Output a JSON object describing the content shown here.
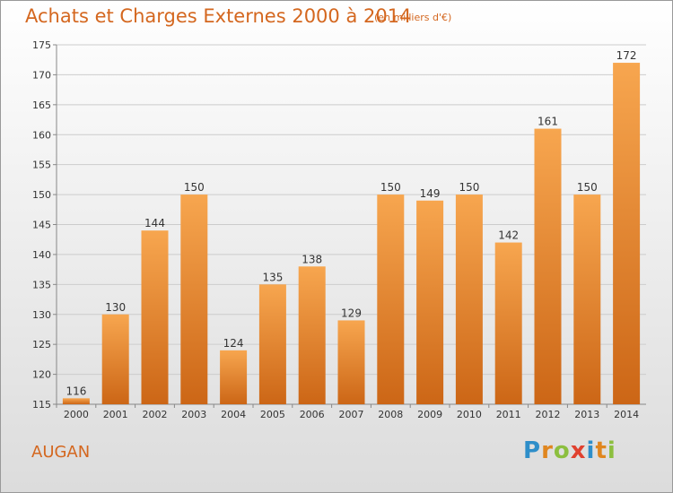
{
  "header": {
    "title": "Achats et Charges Externes 2000 à 2014",
    "subtitle": "(en milliers d'€)"
  },
  "footer": {
    "commune": "AUGAN",
    "logo_text": "Proxiti",
    "logo_letters": [
      "P",
      "r",
      "o",
      "x",
      "i",
      "t",
      "i"
    ]
  },
  "colors": {
    "bar_top": "#f7a64f",
    "bar_bottom": "#cc6616",
    "title": "#d4671f",
    "grid": "#cccccc"
  },
  "chart_data": {
    "type": "bar",
    "title": "Achats et Charges Externes 2000 à 2014",
    "subtitle": "(en milliers d'€)",
    "categories": [
      "2000",
      "2001",
      "2002",
      "2003",
      "2004",
      "2005",
      "2006",
      "2007",
      "2008",
      "2009",
      "2010",
      "2011",
      "2012",
      "2013",
      "2014"
    ],
    "values": [
      116,
      130,
      144,
      150,
      124,
      135,
      138,
      129,
      150,
      149,
      150,
      142,
      161,
      150,
      172
    ],
    "ylim": [
      115,
      175
    ],
    "yticks": [
      115,
      120,
      125,
      130,
      135,
      140,
      145,
      150,
      155,
      160,
      165,
      170,
      175
    ],
    "grid": true,
    "data_labels": true
  }
}
